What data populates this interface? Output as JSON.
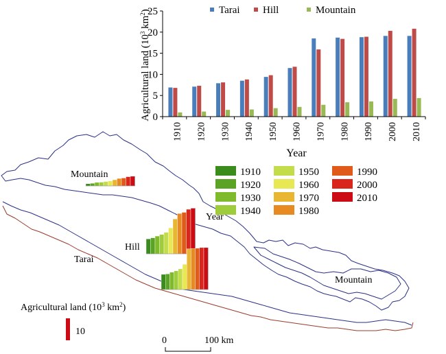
{
  "chart_data": [
    {
      "type": "bar",
      "categories": [
        "1910",
        "1920",
        "1930",
        "1940",
        "1950",
        "1960",
        "1970",
        "1980",
        "1990",
        "2000",
        "2010"
      ],
      "series": [
        {
          "name": "Tarai",
          "color": "#4a7ebb",
          "values": [
            6.9,
            7.1,
            7.9,
            8.5,
            9.4,
            11.5,
            18.5,
            18.7,
            18.8,
            19.1,
            19.1
          ]
        },
        {
          "name": "Hill",
          "color": "#be4b48",
          "values": [
            6.8,
            7.3,
            8.1,
            8.8,
            9.8,
            11.8,
            15.9,
            18.4,
            18.9,
            20.3,
            20.8
          ]
        },
        {
          "name": "Mountain",
          "color": "#98b954",
          "values": [
            1.0,
            1.2,
            1.6,
            1.7,
            2.0,
            2.3,
            2.8,
            3.4,
            3.6,
            4.2,
            4.4
          ]
        }
      ],
      "xlabel": "Year",
      "ylabel": "Agricultural land (10³ km²)",
      "ylim": [
        0,
        25
      ],
      "yticks": [
        "0",
        "5",
        "10",
        "15",
        "20",
        "25"
      ],
      "legend": "top",
      "grid": false
    },
    {
      "type": "map",
      "legend_title": "Year",
      "years": [
        {
          "label": "1910",
          "color": "#3a8c1c"
        },
        {
          "label": "1920",
          "color": "#5aa324"
        },
        {
          "label": "1930",
          "color": "#7fba2c"
        },
        {
          "label": "1940",
          "color": "#9fcc3a"
        },
        {
          "label": "1950",
          "color": "#c3dc4a"
        },
        {
          "label": "1960",
          "color": "#e8e854"
        },
        {
          "label": "1970",
          "color": "#e8b632"
        },
        {
          "label": "1980",
          "color": "#e88a22"
        },
        {
          "label": "1990",
          "color": "#e05a1a"
        },
        {
          "label": "2000",
          "color": "#d8261c"
        },
        {
          "label": "2010",
          "color": "#cc0c14"
        }
      ],
      "regions": [
        {
          "name": "Mountain",
          "values": [
            1.0,
            1.2,
            1.6,
            1.7,
            2.0,
            2.3,
            2.8,
            3.4,
            3.6,
            4.2,
            4.4
          ]
        },
        {
          "name": "Hill",
          "values": [
            6.8,
            7.3,
            8.1,
            8.8,
            9.8,
            11.8,
            15.9,
            18.4,
            18.9,
            20.3,
            20.8
          ]
        },
        {
          "name": "Tarai",
          "values": [
            6.9,
            7.1,
            7.9,
            8.5,
            9.4,
            11.5,
            18.5,
            18.7,
            18.8,
            19.1,
            19.1
          ]
        }
      ],
      "mountain_label_2": "Mountain",
      "bar_scale_title": "Agricultural land (10³ km²)",
      "bar_scale_value": "10",
      "scale_bar": {
        "left": "0",
        "right": "100 km"
      }
    }
  ]
}
